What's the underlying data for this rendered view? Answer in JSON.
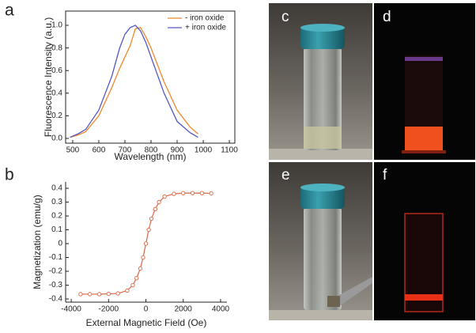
{
  "chart_data": [
    {
      "type": "line",
      "label": "a",
      "xlabel": "Wavelength (nm)",
      "ylabel": "Fluorescence Intensity (a.u.)",
      "x": [
        490,
        520,
        550,
        600,
        650,
        680,
        700,
        720,
        740,
        760,
        780,
        800,
        850,
        900,
        950,
        980
      ],
      "series": [
        {
          "name": "- iron oxide",
          "color": "#f0882a",
          "values": [
            0.01,
            0.03,
            0.06,
            0.2,
            0.45,
            0.62,
            0.72,
            0.82,
            0.97,
            0.98,
            0.9,
            0.8,
            0.5,
            0.25,
            0.1,
            0.04
          ]
        },
        {
          "name": "+ iron oxide",
          "color": "#5356c4",
          "values": [
            0.01,
            0.04,
            0.08,
            0.25,
            0.55,
            0.8,
            0.92,
            0.98,
            1.0,
            0.95,
            0.85,
            0.72,
            0.4,
            0.15,
            0.05,
            0.01
          ]
        }
      ],
      "xlim": [
        473,
        1121
      ],
      "ylim": [
        -0.042,
        1.126
      ],
      "xticks": [
        500,
        600,
        700,
        800,
        900,
        1000,
        1100
      ],
      "yticks": [
        {
          "value": 0,
          "label": "0.0"
        },
        0.2,
        0.4,
        0.6,
        0.8,
        {
          "value": 1,
          "label": "1.0"
        }
      ],
      "box": true,
      "legend": "upper right"
    },
    {
      "type": "line",
      "label": "b",
      "xlabel": "External Magnetic Field (Oe)",
      "ylabel": "Magnetization (emu/g)",
      "x": [
        -3500,
        -3000,
        -2500,
        -2000,
        -1500,
        -1000,
        -700,
        -500,
        -300,
        -150,
        0,
        150,
        300,
        500,
        700,
        1000,
        1500,
        2000,
        2500,
        3000,
        3500
      ],
      "values": [
        -0.365,
        -0.365,
        -0.365,
        -0.363,
        -0.36,
        -0.34,
        -0.3,
        -0.25,
        -0.18,
        -0.1,
        0,
        0.1,
        0.18,
        0.25,
        0.3,
        0.34,
        0.36,
        0.365,
        0.365,
        0.365,
        0.363
      ],
      "color": "#e07050",
      "marker": "circle",
      "xlim": [
        -4300,
        4340
      ],
      "ylim": [
        -0.423,
        0.446
      ],
      "xticks": [
        -4000,
        -2000,
        0,
        2000,
        4000
      ],
      "yticks": [
        -0.4,
        -0.3,
        -0.2,
        -0.1,
        0,
        0.1,
        0.2,
        0.3,
        0.4
      ],
      "box": false
    }
  ],
  "photos": [
    {
      "label": "c"
    },
    {
      "label": "d"
    },
    {
      "label": "e"
    },
    {
      "label": "f"
    }
  ]
}
